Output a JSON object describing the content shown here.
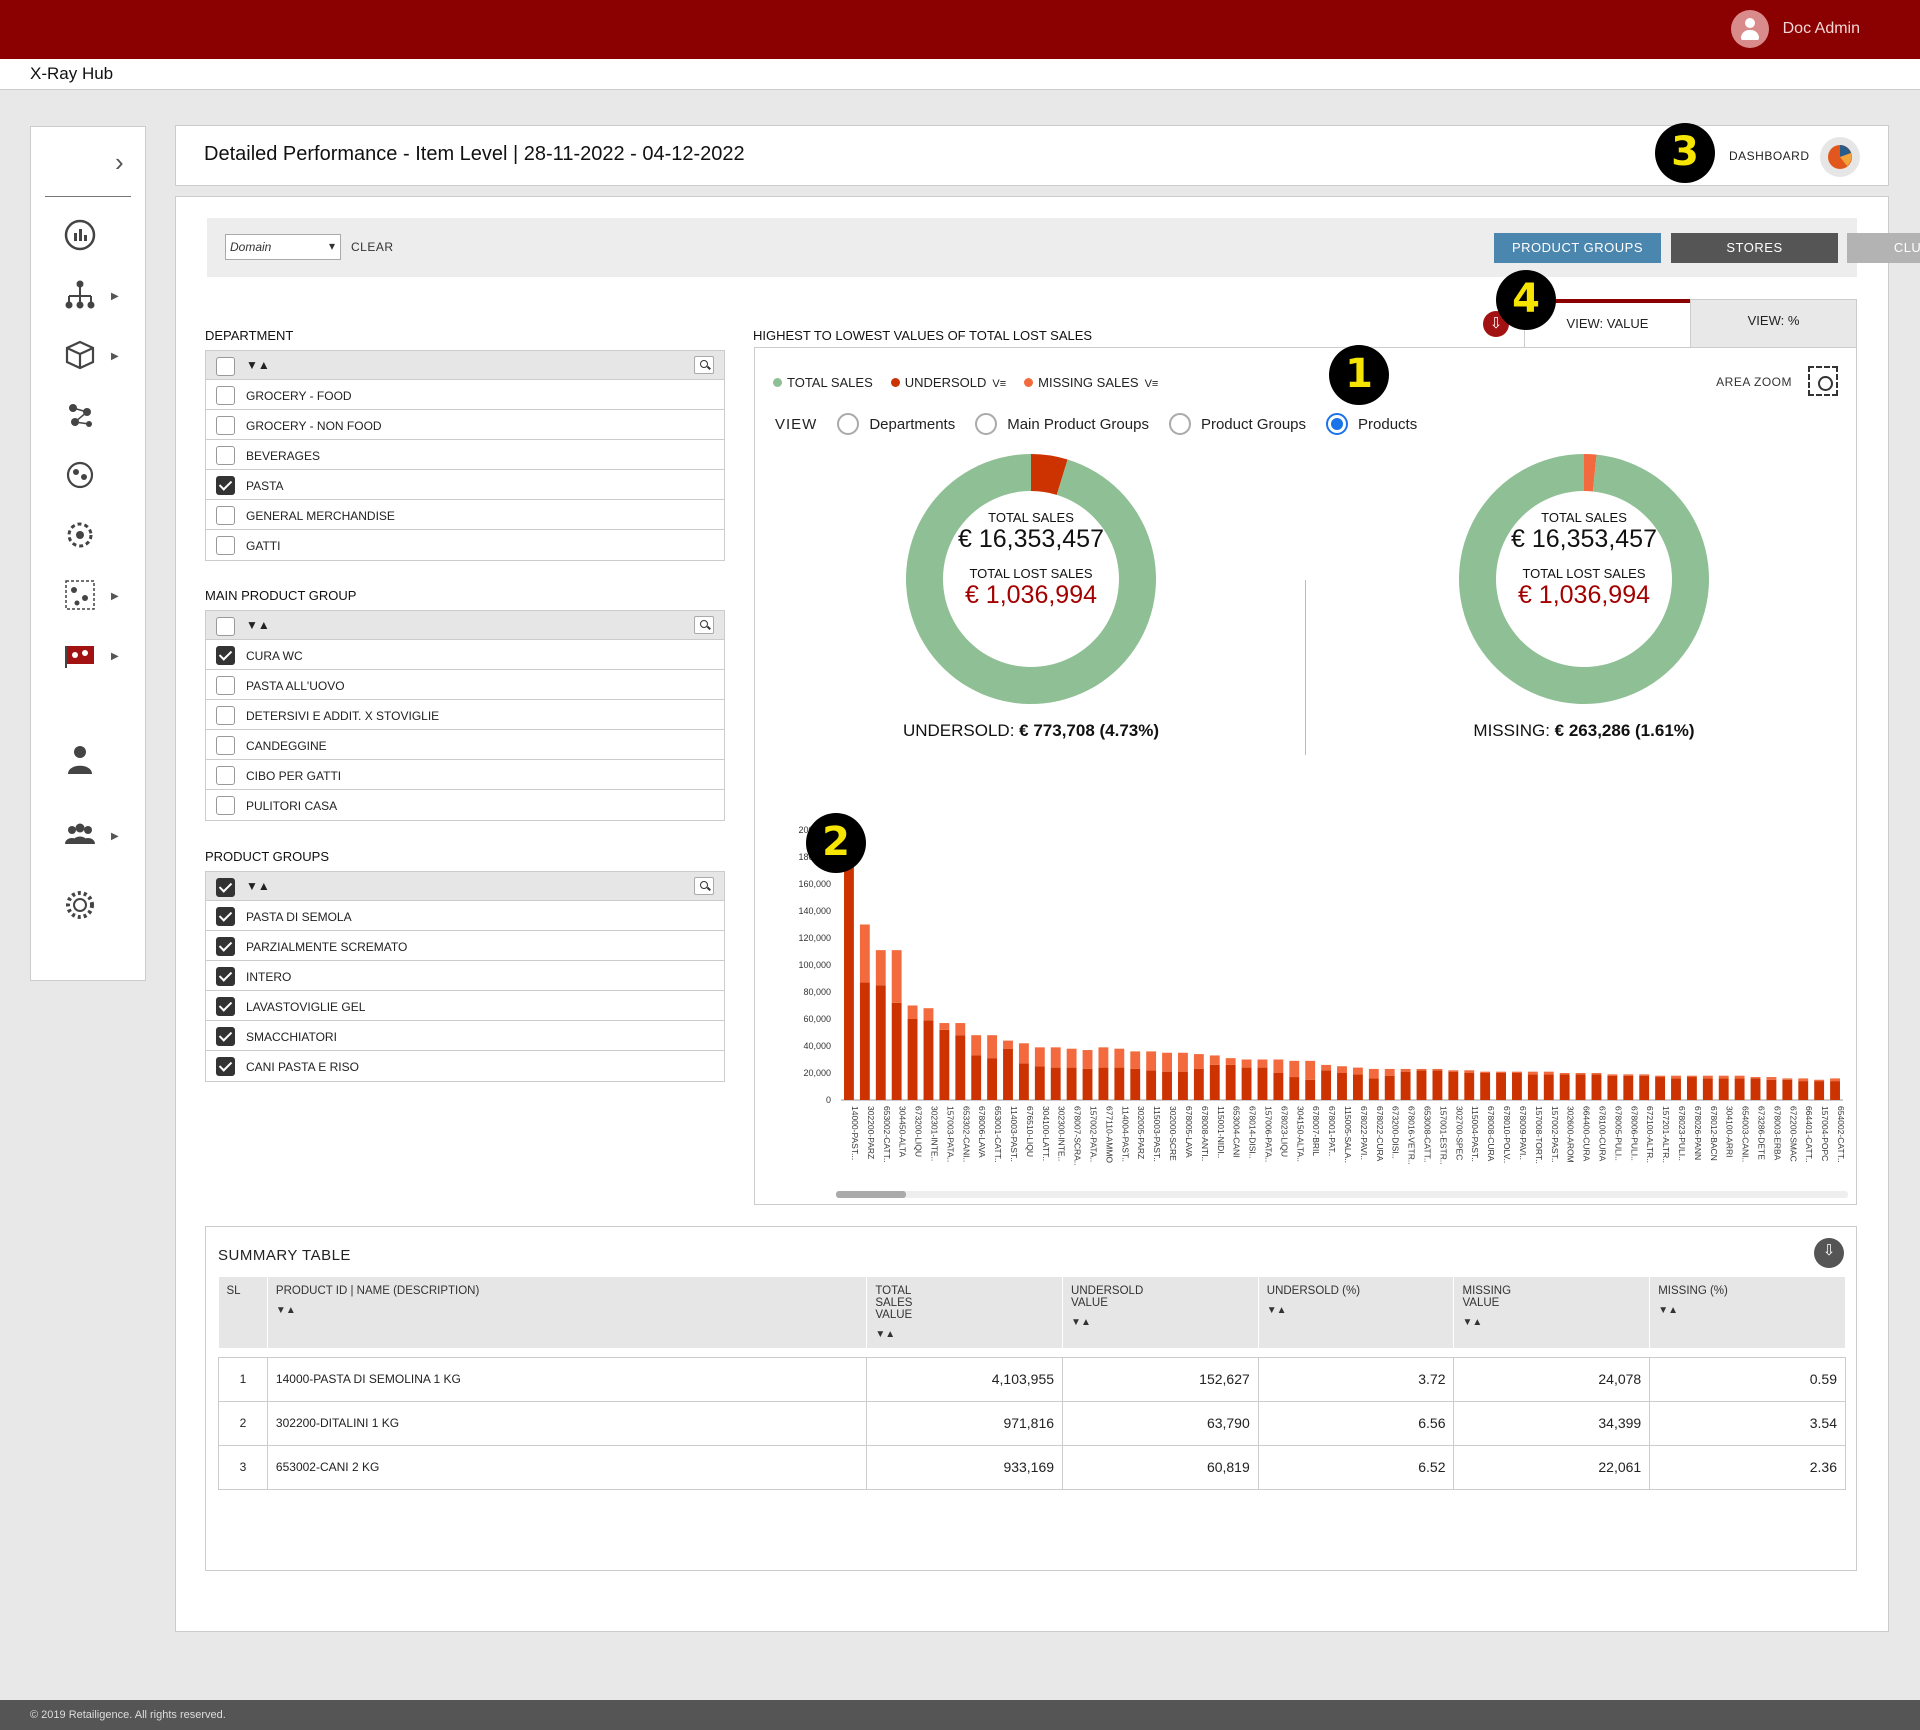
{
  "header": {
    "user_name": "Doc Admin",
    "app_name": "X-Ray Hub"
  },
  "page": {
    "title": "Detailed Performance - Item Level | 28-11-2022 - 04-12-2022",
    "dashboard_label": "DASHBOARD"
  },
  "badges": {
    "b1": "1",
    "b2": "2",
    "b3": "3",
    "b4": "4"
  },
  "filters": {
    "domain_placeholder": "Domain",
    "clear_label": "CLEAR",
    "product_groups": "PRODUCT GROUPS",
    "stores": "STORES",
    "clusters": "CLUSTERS"
  },
  "department": {
    "title": "DEPARTMENT",
    "items": [
      {
        "label": "GROCERY - FOOD",
        "checked": false
      },
      {
        "label": "GROCERY - NON FOOD",
        "checked": false
      },
      {
        "label": "BEVERAGES",
        "checked": false
      },
      {
        "label": "PASTA",
        "checked": true
      },
      {
        "label": "GENERAL MERCHANDISE",
        "checked": false
      },
      {
        "label": "GATTI",
        "checked": false
      }
    ]
  },
  "main_product_group": {
    "title": "MAIN PRODUCT GROUP",
    "items": [
      {
        "label": "CURA WC",
        "checked": true
      },
      {
        "label": "PASTA ALL'UOVO",
        "checked": false
      },
      {
        "label": "DETERSIVI E ADDIT. X STOVIGLIE",
        "checked": false
      },
      {
        "label": "CANDEGGINE",
        "checked": false
      },
      {
        "label": "CIBO PER GATTI",
        "checked": false
      },
      {
        "label": "PULITORI CASA",
        "checked": false
      }
    ]
  },
  "product_groups": {
    "title": "PRODUCT GROUPS",
    "items": [
      {
        "label": "PASTA DI SEMOLA",
        "checked": true
      },
      {
        "label": "PARZIALMENTE SCREMATO",
        "checked": true
      },
      {
        "label": "INTERO",
        "checked": true
      },
      {
        "label": "LAVASTOVIGLIE GEL",
        "checked": true
      },
      {
        "label": "SMACCHIATORI",
        "checked": true
      },
      {
        "label": "CANI PASTA E RISO",
        "checked": true
      }
    ]
  },
  "sort_label": "▼▲",
  "chart_panel": {
    "title": "HIGHEST TO LOWEST VALUES OF TOTAL LOST SALES",
    "tab_value": "VIEW: VALUE",
    "tab_percent": "VIEW: %",
    "legend": {
      "total": "TOTAL SALES",
      "under": "UNDERSOLD",
      "missing": "MISSING SALES",
      "filter_glyph": "V≡"
    },
    "area_zoom": "AREA ZOOM",
    "view_label": "VIEW",
    "view_options": [
      {
        "label": "Departments",
        "selected": false
      },
      {
        "label": "Main Product Groups",
        "selected": false
      },
      {
        "label": "Product Groups",
        "selected": false
      },
      {
        "label": "Products",
        "selected": true
      }
    ],
    "donut1": {
      "total_label": "TOTAL SALES",
      "total_value": "€ 16,353,457",
      "lost_label": "TOTAL LOST SALES",
      "lost_value": "€ 1,036,994",
      "summary_label": "UNDERSOLD:",
      "summary_value": "€ 773,708 (4.73%)"
    },
    "donut2": {
      "total_label": "TOTAL SALES",
      "total_value": "€ 16,353,457",
      "lost_label": "TOTAL LOST SALES",
      "lost_value": "€ 1,036,994",
      "summary_label": "MISSING:",
      "summary_value": "€ 263,286 (1.61%)"
    }
  },
  "colors": {
    "brand": "#8b0000",
    "total": "#8fbf95",
    "under": "#cc3300",
    "missing": "#f26a3d",
    "pg_btn": "#4a86ae",
    "stores_btn": "#555555",
    "clusters_btn": "#b3b3b3"
  },
  "chart_data": [
    {
      "type": "pie",
      "labels": [
        "TOTAL SALES",
        "UNDERSOLD"
      ],
      "values": [
        15579749,
        773708
      ]
    },
    {
      "type": "pie",
      "labels": [
        "TOTAL SALES",
        "MISSING SALES"
      ],
      "values": [
        16090171,
        263286
      ]
    },
    {
      "type": "bar",
      "stacked": true,
      "ylim": [
        0,
        200000
      ],
      "yticks": [
        "0",
        "20,000",
        "40,000",
        "60,000",
        "80,000",
        "100,000",
        "120,000",
        "140,000",
        "160,000",
        "180,000",
        "200,000"
      ],
      "categories": [
        "14000-PAST...",
        "302200-PARZ",
        "653002-CATT..",
        "304450-ALTA",
        "673200-LIQU",
        "302301-INTE..",
        "157003-PATA..",
        "653302-CANI..",
        "678006-LAVA",
        "653001-CATT..",
        "114003-PAST..",
        "676510-LIQU",
        "304100-LATT..",
        "302300-INTE..",
        "678007-SCRA..",
        "157002-PATA..",
        "677110-AMMO",
        "114004-PAST..",
        "302005-PARZ",
        "115003-PAST..",
        "302000-SCRE",
        "678005-LAVA",
        "678008-ANTI..",
        "115001-NIDI..",
        "653004-CANI",
        "678014-DISI..",
        "157006-PATA..",
        "678023-LIQU",
        "304150-ALTA..",
        "678007-BRIL",
        "678001-PAT..",
        "115005-SALA..",
        "678022-PAVI..",
        "678022-CURA",
        "673200-DISI..",
        "678016-VETR..",
        "653008-CATT..",
        "157001-ESTR..",
        "302700-SPEC",
        "115004-PAST..",
        "678008-CURA",
        "678010-POLV..",
        "678009-PAVI..",
        "157008-TORT..",
        "157002-PAST..",
        "302600-AROM",
        "664400-CURA",
        "678100-CURA",
        "678005-PULI..",
        "678006-PULI..",
        "672100-ALTR..",
        "157201-ALTR..",
        "678023-PULI..",
        "678026-PANN",
        "678012-BACN",
        "304100-ARRI",
        "654003-CANI..",
        "673286-DETE",
        "678003-ERBA",
        "672200-SMAC",
        "664401-CATT..",
        "157004-POPC",
        "654002-CATT.."
      ],
      "series": [
        {
          "name": "UNDERSOLD",
          "values": [
            185000,
            87000,
            85000,
            72000,
            60000,
            59000,
            52000,
            48000,
            33000,
            31000,
            38000,
            27000,
            25000,
            24000,
            24000,
            23000,
            24000,
            24000,
            23000,
            22000,
            21000,
            21000,
            23000,
            26000,
            26000,
            24000,
            24000,
            20000,
            17000,
            15000,
            22000,
            20000,
            19000,
            16000,
            18000,
            21000,
            22000,
            22000,
            21000,
            20000,
            20000,
            20000,
            20000,
            19000,
            19000,
            19000,
            19000,
            19000,
            18000,
            18000,
            18000,
            17000,
            16000,
            17000,
            16000,
            16000,
            16000,
            16000,
            15000,
            15000,
            14000,
            14000,
            14000
          ]
        },
        {
          "name": "MISSING SALES",
          "values": [
            0,
            43000,
            26000,
            39000,
            10000,
            9000,
            5000,
            9000,
            15000,
            17000,
            6000,
            15000,
            14000,
            15000,
            14000,
            14000,
            15000,
            14000,
            13000,
            14000,
            14000,
            14000,
            11000,
            7000,
            5000,
            6000,
            6000,
            10000,
            12000,
            14000,
            4000,
            5000,
            5000,
            7000,
            5000,
            2000,
            1000,
            1000,
            1000,
            2000,
            1000,
            1000,
            1000,
            2000,
            2000,
            1000,
            1000,
            1000,
            1000,
            1000,
            1000,
            1000,
            2000,
            1000,
            2000,
            2000,
            2000,
            1000,
            2000,
            1000,
            2000,
            1000,
            2000
          ]
        }
      ]
    }
  ],
  "summary": {
    "title": "SUMMARY TABLE",
    "columns": [
      "SL",
      "PRODUCT ID | NAME (DESCRIPTION)",
      "TOTAL SALES VALUE",
      "UNDERSOLD VALUE",
      "UNDERSOLD (%)",
      "MISSING VALUE",
      "MISSING (%)"
    ],
    "rows": [
      [
        "1",
        "14000-PASTA DI SEMOLINA 1 KG",
        "4,103,955",
        "152,627",
        "3.72",
        "24,078",
        "0.59"
      ],
      [
        "2",
        "302200-DITALINI 1 KG",
        "971,816",
        "63,790",
        "6.56",
        "34,399",
        "3.54"
      ],
      [
        "3",
        "653002-CANI 2 KG",
        "933,169",
        "60,819",
        "6.52",
        "22,061",
        "2.36"
      ]
    ]
  },
  "footer": "© 2019 Retailigence. All rights reserved."
}
